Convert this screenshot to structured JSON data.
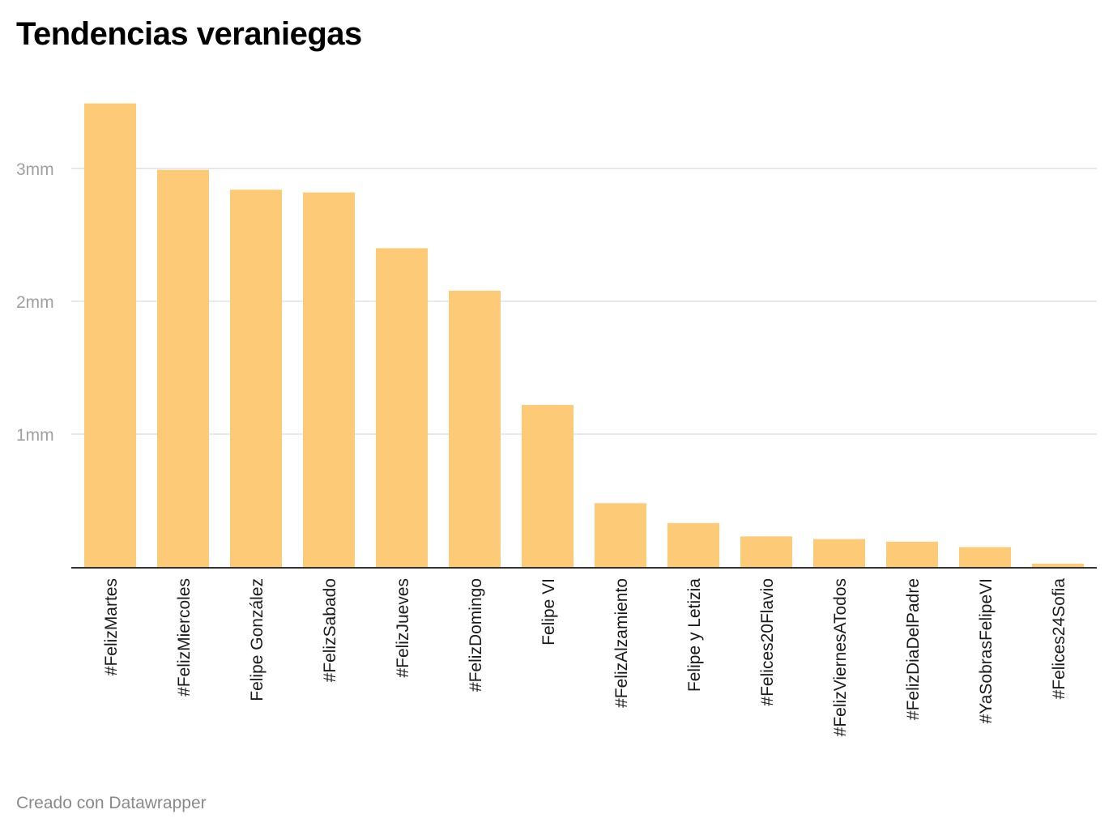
{
  "title": "Tendencias veraniegas",
  "footer": "Creado con Datawrapper",
  "colors": {
    "bar": "#fdcb78",
    "grid": "#e2e2e2",
    "axis": "#333333"
  },
  "chart_data": {
    "type": "bar",
    "title": "Tendencias veraniegas",
    "xlabel": "",
    "ylabel": "",
    "ylim": [
      0,
      3500000
    ],
    "yticks": [
      {
        "value": 1000000,
        "label": "1mm"
      },
      {
        "value": 2000000,
        "label": "2mm"
      },
      {
        "value": 3000000,
        "label": "3mm"
      }
    ],
    "grid": true,
    "categories": [
      "#FelizMartes",
      "#FelizMiercoles",
      "Felipe González",
      "#FelizSabado",
      "#FelizJueves",
      "#FelizDomingo",
      "Felipe VI",
      "#FelizAlzamiento",
      "Felipe y Letizia",
      "#Felices20Flavio",
      "#FelizViernesATodos",
      "#FelizDiaDelPadre",
      "#YaSobrasFelipeVI",
      "#Felices24Sofia"
    ],
    "values": [
      3490000,
      2990000,
      2840000,
      2820000,
      2400000,
      2080000,
      1220000,
      480000,
      330000,
      230000,
      210000,
      190000,
      150000,
      25000
    ]
  }
}
